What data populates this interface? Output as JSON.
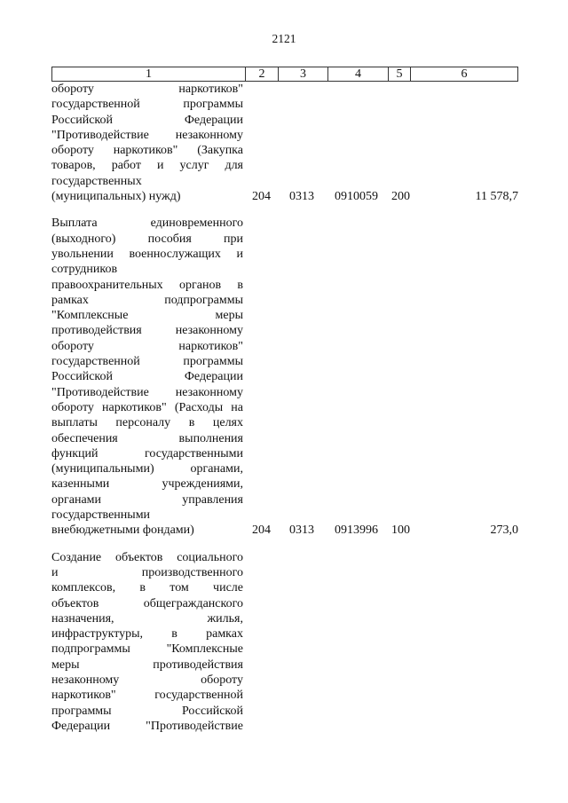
{
  "page_number": "2121",
  "header": [
    "1",
    "2",
    "3",
    "4",
    "5",
    "6"
  ],
  "rows": [
    {
      "lines": [
        "обороту наркотиков\"",
        "государственной программы",
        "Российской Федерации",
        "\"Противодействие незаконному",
        "обороту наркотиков\" (Закупка",
        "товаров, работ и услуг для",
        "государственных",
        "(муниципальных) нужд)"
      ],
      "col2": "204",
      "col3": "0313",
      "col4": "0910059",
      "col5": "200",
      "col6": "11 578,7"
    },
    {
      "lines": [
        "Выплата единовременного",
        "(выходного) пособия при",
        "увольнении военнослужащих и",
        "сотрудников",
        "правоохранительных органов в",
        "рамках подпрограммы",
        "\"Комплексные меры",
        "противодействия незаконному",
        "обороту наркотиков\"",
        "государственной программы",
        "Российской Федерации",
        "\"Противодействие незаконному",
        "обороту наркотиков\" (Расходы на",
        "выплаты персоналу в целях",
        "обеспечения выполнения",
        "функций государственными",
        "(муниципальными) органами,",
        "казенными учреждениями,",
        "органами управления",
        "государственными",
        "внебюджетными фондами)"
      ],
      "col2": "204",
      "col3": "0313",
      "col4": "0913996",
      "col5": "100",
      "col6": "273,0"
    },
    {
      "lines": [
        "Создание объектов социального",
        "и производственного",
        "комплексов, в том числе",
        "объектов общегражданского",
        "назначения, жилья,",
        "инфраструктуры, в рамках",
        "подпрограммы \"Комплексные",
        "меры противодействия",
        "незаконному обороту",
        "наркотиков\" государственной",
        "программы Российской",
        "Федерации \"Противодействие"
      ],
      "col2": "",
      "col3": "",
      "col4": "",
      "col5": "",
      "col6": ""
    }
  ]
}
